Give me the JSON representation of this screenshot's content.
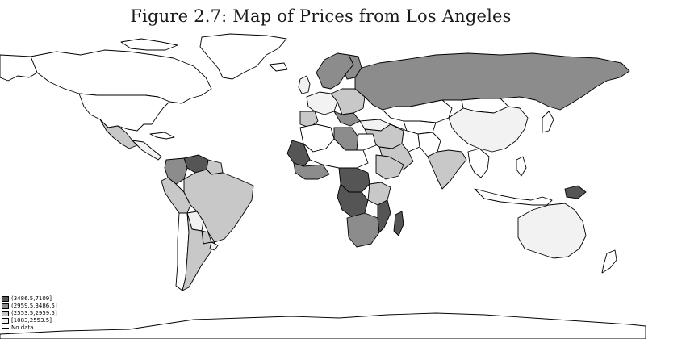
{
  "title": "Figure 2.7: Map of Prices from Los Angeles",
  "legend": {
    "items": [
      {
        "label": "(3486.5,7109]",
        "color": "#555555"
      },
      {
        "label": "(2959.5,3486.5]",
        "color": "#8c8c8c"
      },
      {
        "label": "(2553.5,2959.5]",
        "color": "#c8c8c8"
      },
      {
        "label": "[1083,2553.5]",
        "color": "#f2f2f2"
      },
      {
        "label": "No data",
        "color": "#ffffff"
      }
    ]
  },
  "map": {
    "classes": {
      "q4": "#555555",
      "q3": "#8c8c8c",
      "q2": "#c8c8c8",
      "q1": "#f2f2f2",
      "none": "#ffffff"
    }
  }
}
